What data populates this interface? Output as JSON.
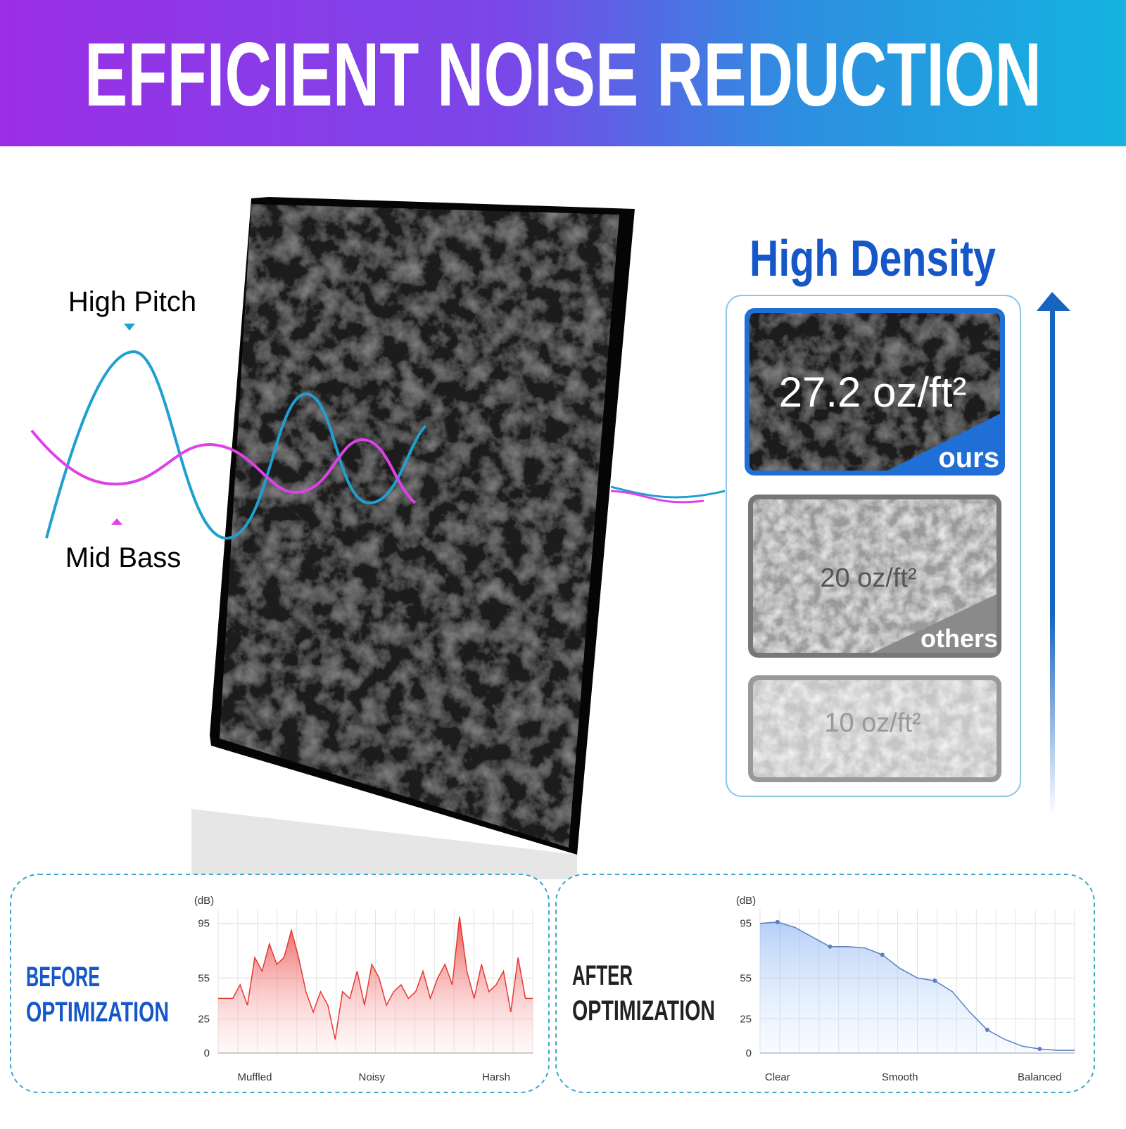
{
  "header": {
    "title": "EFFICIENT NOISE REDUCTION"
  },
  "waves": {
    "high_label": "High Pitch",
    "low_label": "Mid Bass"
  },
  "density": {
    "title": "High Density",
    "items": [
      {
        "label": "27.2 oz/ft²",
        "tag": "ours"
      },
      {
        "label": "20 oz/ft²",
        "tag": "others"
      },
      {
        "label": "10 oz/ft²"
      }
    ]
  },
  "chart_data": [
    {
      "type": "line",
      "title_lines": [
        "BEFORE",
        "OPTIMIZATION"
      ],
      "ylabel": "(dB)",
      "categories": [
        null,
        null,
        null,
        null,
        null,
        "Muffled",
        null,
        null,
        null,
        null,
        null,
        null,
        null,
        null,
        null,
        null,
        null,
        null,
        null,
        null,
        null,
        "Noisy",
        null,
        null,
        null,
        null,
        null,
        null,
        null,
        null,
        null,
        null,
        null,
        null,
        null,
        null,
        null,
        null,
        "Harsh",
        null,
        null,
        null,
        null,
        null
      ],
      "series": [
        {
          "name": "before",
          "color": "#e53935",
          "values": [
            40,
            40,
            40,
            50,
            35,
            70,
            60,
            80,
            65,
            70,
            90,
            70,
            45,
            30,
            45,
            35,
            10,
            45,
            40,
            60,
            35,
            65,
            55,
            35,
            45,
            50,
            40,
            45,
            60,
            40,
            55,
            65,
            50,
            100,
            60,
            40,
            65,
            45,
            50,
            60,
            30,
            70,
            40,
            40
          ]
        }
      ],
      "ylim": [
        0,
        100
      ],
      "yticks": [
        0,
        25,
        55,
        95
      ],
      "grid": true
    },
    {
      "type": "area",
      "title_lines": [
        "AFTER",
        "OPTIMIZATION"
      ],
      "ylabel": "(dB)",
      "categories": [
        null,
        "Clear",
        null,
        null,
        null,
        null,
        null,
        null,
        "Smooth",
        null,
        null,
        null,
        null,
        null,
        null,
        null,
        "Balanced",
        null,
        null
      ],
      "series": [
        {
          "name": "after",
          "color": "#5b7fc0",
          "values": [
            95,
            96,
            92,
            85,
            78,
            78,
            77,
            72,
            62,
            55,
            53,
            45,
            30,
            17,
            10,
            5,
            3,
            2,
            2
          ]
        }
      ],
      "ylim": [
        0,
        100
      ],
      "yticks": [
        0,
        25,
        55,
        95
      ],
      "grid": true
    }
  ]
}
